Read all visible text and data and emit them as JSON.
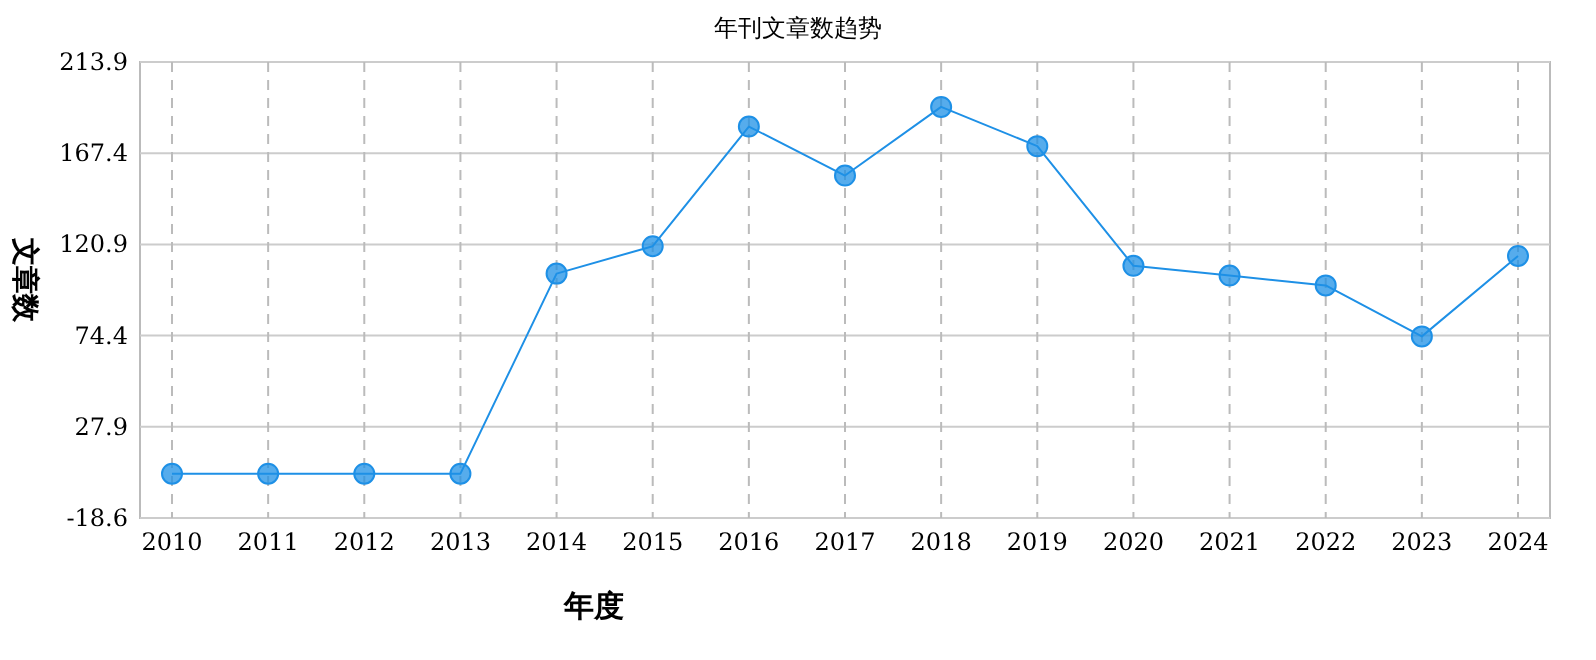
{
  "chart_data": {
    "type": "line",
    "title": "年刊文章数趋势",
    "xlabel": "年度",
    "ylabel": "文章数",
    "categories": [
      "2010",
      "2011",
      "2012",
      "2013",
      "2014",
      "2015",
      "2016",
      "2017",
      "2018",
      "2019",
      "2020",
      "2021",
      "2022",
      "2023",
      "2024"
    ],
    "series": [
      {
        "color": "#1e90e6",
        "values": [
          4,
          4,
          4,
          4,
          106,
          120,
          181,
          156,
          191,
          171,
          110,
          105,
          100,
          74,
          115
        ]
      }
    ],
    "ylim": [
      -18.6,
      213.9
    ],
    "yticks": [
      -18.6,
      27.9,
      74.4,
      120.9,
      167.4,
      213.9
    ],
    "grid": true,
    "marker": "circle",
    "line_style": "solid"
  }
}
